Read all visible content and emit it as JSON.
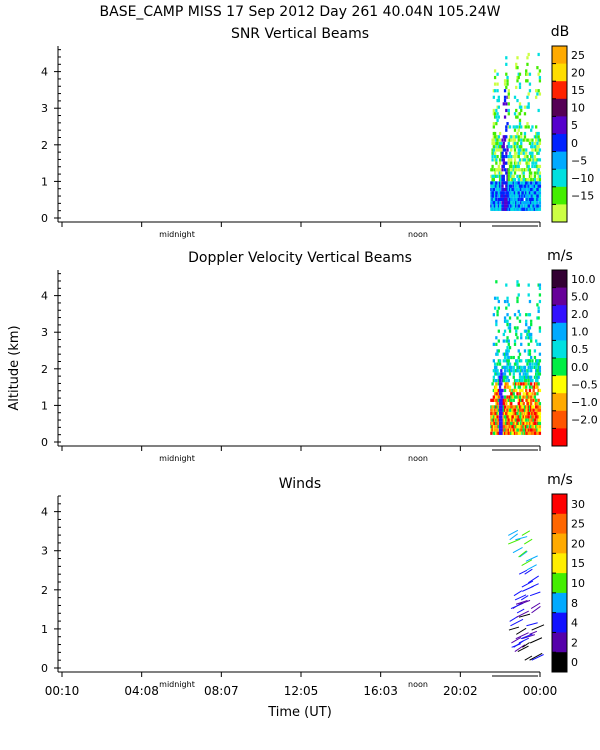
{
  "header": {
    "title": "BASE_CAMP MISS  17 Sep 2012 Day 261 40.04N 105.24W"
  },
  "figure": {
    "xlabel": "Time (UT)",
    "ylabel": "Altitude (km)",
    "x_ticks": [
      "00:10",
      "04:08",
      "08:07",
      "12:05",
      "16:03",
      "20:02",
      "00:00"
    ],
    "day_markers": [
      "midnight",
      "noon"
    ]
  },
  "chart_data": [
    {
      "type": "heatmap",
      "title": "SNR Vertical Beams",
      "ylim": [
        0,
        4.7
      ],
      "y_ticks": [
        0,
        1,
        2,
        3,
        4
      ],
      "colorbar": {
        "unit": "dB",
        "labels": [
          "25",
          "20",
          "15",
          "10",
          "5",
          "0",
          "−5",
          "−10",
          "−15"
        ],
        "colors": [
          "#ffaa00",
          "#ffdd00",
          "#ff2200",
          "#550055",
          "#5500cc",
          "#0022ff",
          "#00aaff",
          "#00e0e0",
          "#44ee00",
          "#ccff44"
        ]
      },
      "data_hours": [
        21.5,
        24.0
      ],
      "data_alt_km": [
        0.2,
        4.6
      ]
    },
    {
      "type": "heatmap",
      "title": "Doppler Velocity Vertical Beams",
      "ylim": [
        0,
        4.7
      ],
      "y_ticks": [
        0,
        1,
        2,
        3,
        4
      ],
      "colorbar": {
        "unit": "m/s",
        "labels": [
          "10.0",
          "5.0",
          "2.0",
          "1.0",
          "0.5",
          "0.0",
          "−0.5",
          "−1.0",
          "−2.0"
        ],
        "colors": [
          "#330033",
          "#660099",
          "#3311ff",
          "#00aaff",
          "#00e0e0",
          "#00ee44",
          "#ffff00",
          "#ffaa00",
          "#ff5500",
          "#ff0000"
        ]
      },
      "data_hours": [
        21.5,
        24.0
      ],
      "data_alt_km": [
        0.2,
        4.4
      ]
    },
    {
      "type": "scatter",
      "title": "Winds",
      "ylim": [
        0,
        4.4
      ],
      "y_ticks": [
        0,
        1,
        2,
        3,
        4
      ],
      "colorbar": {
        "unit": "m/s",
        "labels": [
          "30",
          "25",
          "20",
          "15",
          "10",
          "8",
          "4",
          "2",
          "0"
        ],
        "colors": [
          "#ff0000",
          "#ff6600",
          "#ffaa00",
          "#ffee00",
          "#44ee00",
          "#00aaff",
          "#1111ff",
          "#5500aa",
          "#000000"
        ]
      },
      "data_hours": [
        22.0,
        24.0
      ],
      "data_alt_km": [
        0.2,
        3.4
      ]
    }
  ]
}
